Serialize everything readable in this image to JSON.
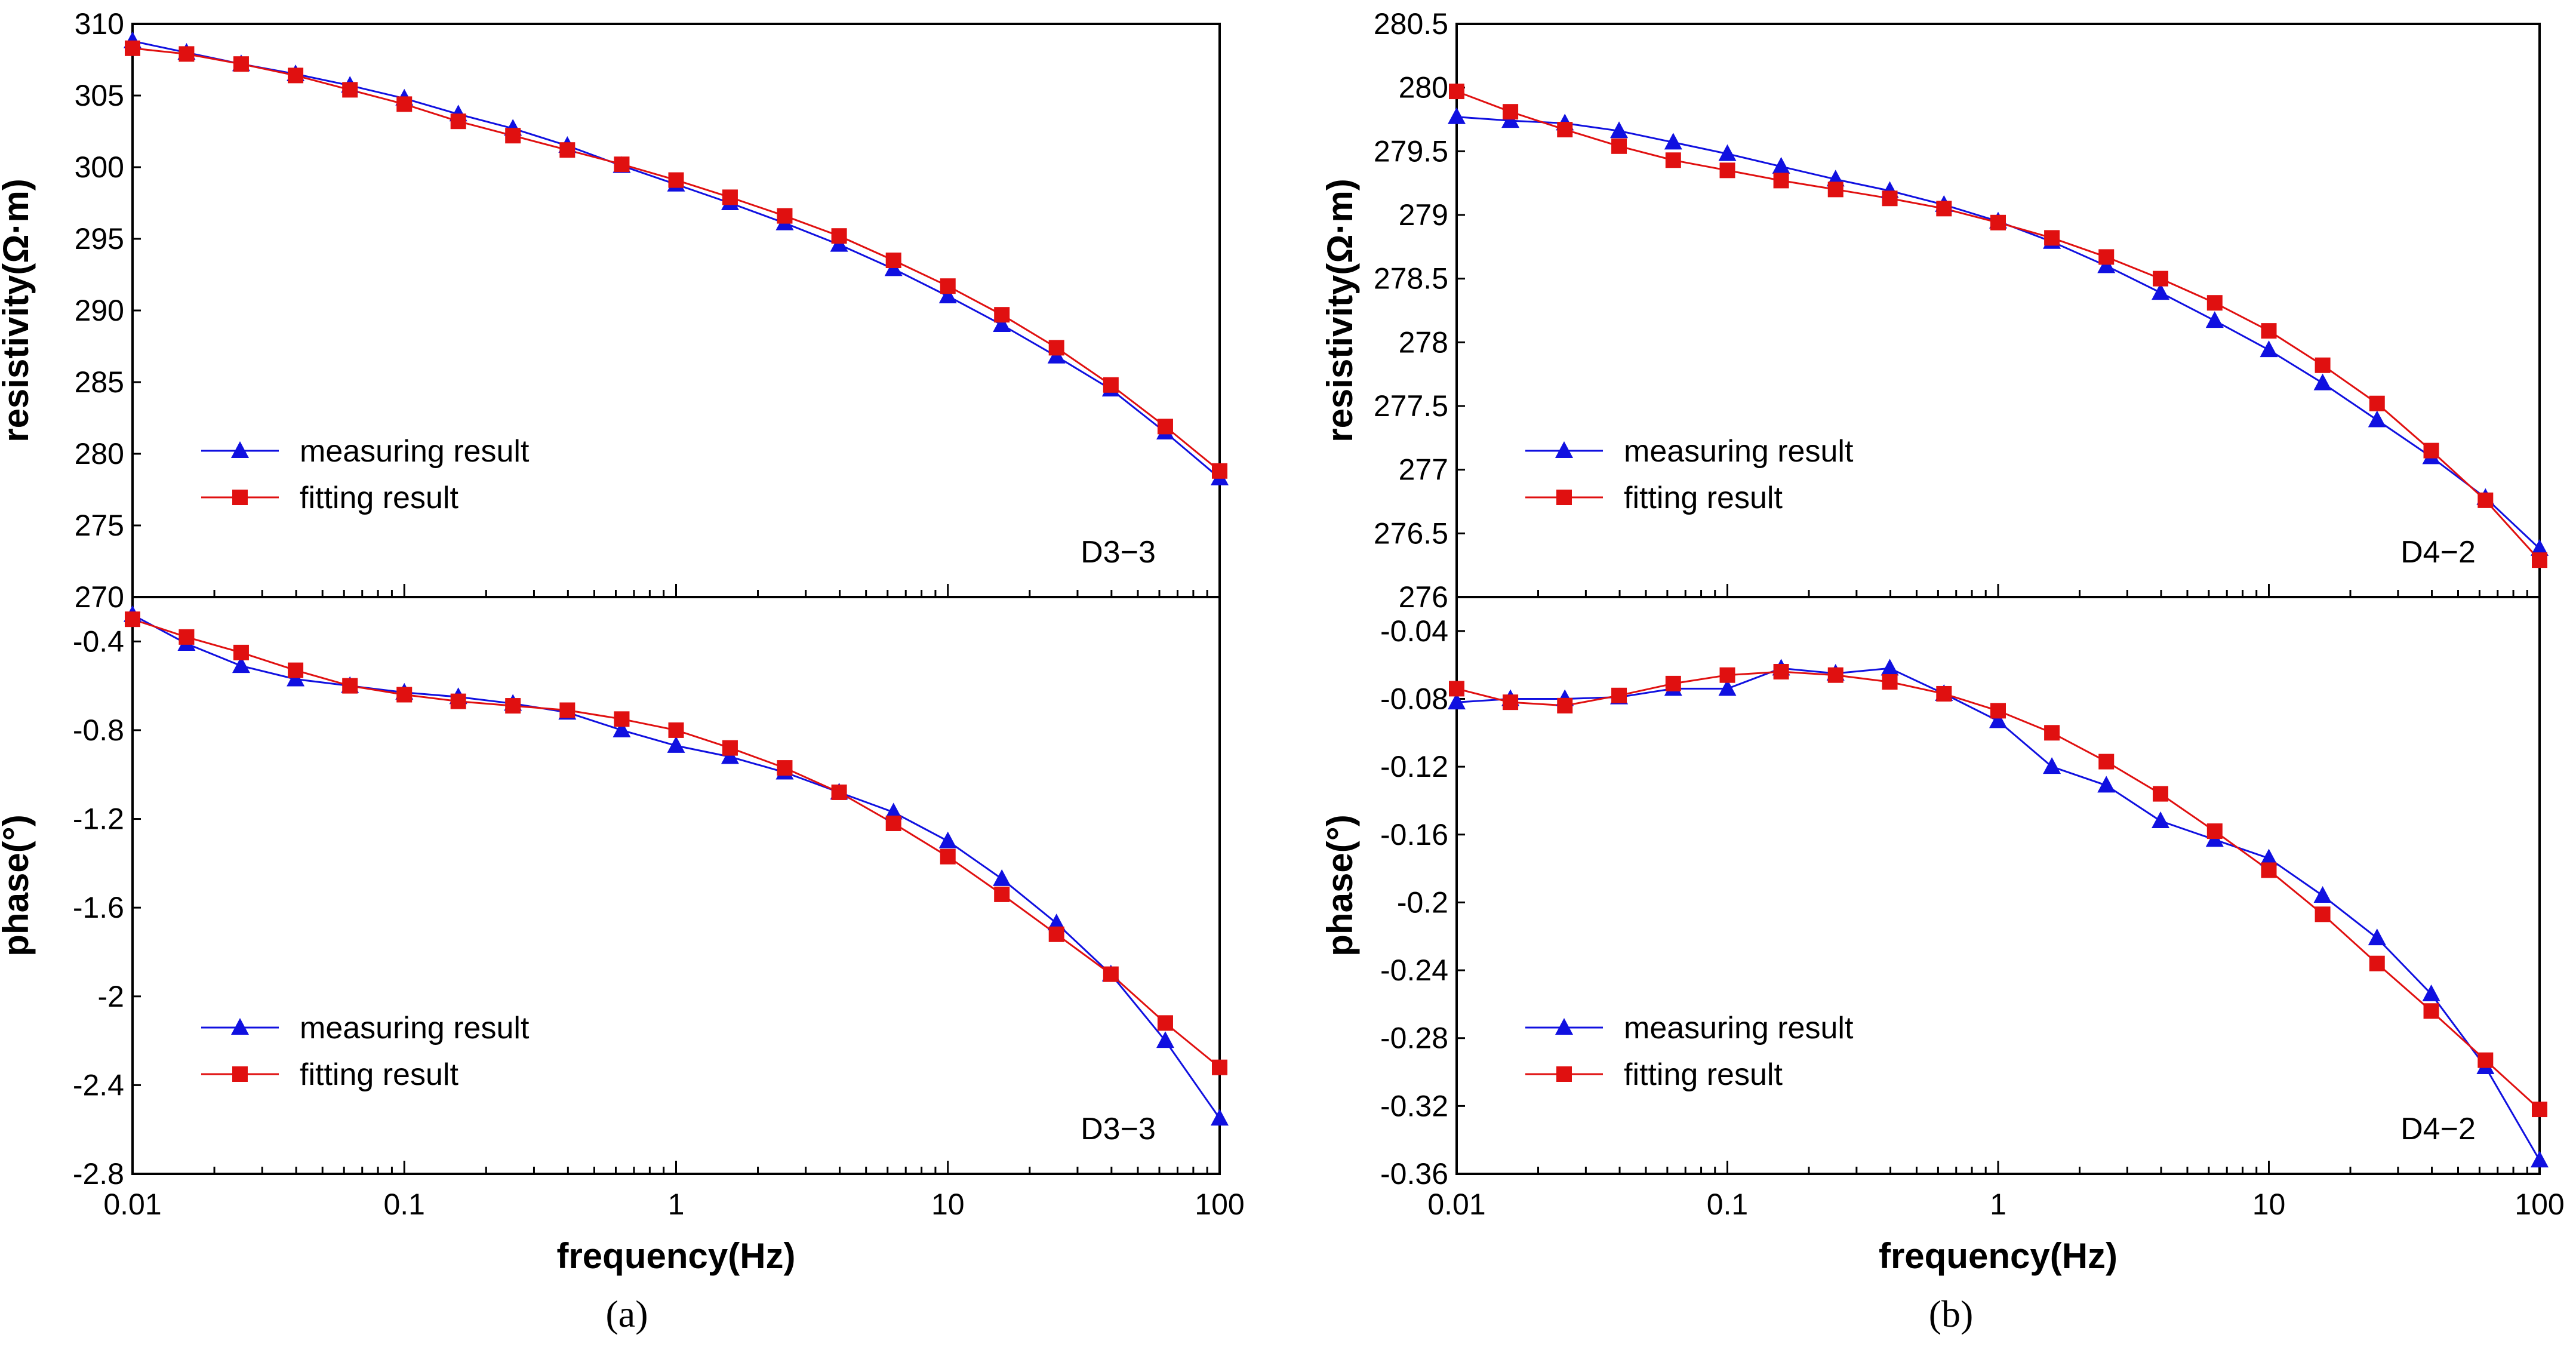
{
  "colors": {
    "measuring": "#1010e0",
    "fitting": "#e01010",
    "axis": "#000000"
  },
  "panels": [
    {
      "letter": "a",
      "label": "(a)"
    },
    {
      "letter": "b",
      "label": "(b)"
    }
  ],
  "chart_data": [
    {
      "type": "line",
      "panel": "a",
      "subplot": "top",
      "ylabel": "resistivity(Ω·m)",
      "xlabel": "",
      "annotation": "D3−3",
      "xscale": "log",
      "xlim": [
        0.01,
        100
      ],
      "ylim": [
        270,
        310
      ],
      "yticks": [
        "310",
        "305",
        "300",
        "295",
        "290",
        "285",
        "280",
        "275",
        "270"
      ],
      "xticks": [],
      "legend_position": "lower-left",
      "x": [
        0.01,
        0.0158,
        0.0251,
        0.0398,
        0.0631,
        0.1,
        0.158,
        0.251,
        0.398,
        0.631,
        1,
        1.58,
        2.51,
        3.98,
        6.31,
        10,
        15.8,
        25.1,
        39.8,
        63.1,
        100
      ],
      "series": [
        {
          "name": "measuring result",
          "marker": "triangle",
          "values": [
            308.8,
            308.0,
            307.2,
            306.5,
            305.7,
            304.8,
            303.7,
            302.7,
            301.5,
            300.1,
            298.8,
            297.5,
            296.1,
            294.6,
            292.9,
            291.0,
            289.0,
            286.8,
            284.5,
            281.5,
            278.3
          ]
        },
        {
          "name": "fitting result",
          "marker": "square",
          "values": [
            308.3,
            307.9,
            307.2,
            306.4,
            305.4,
            304.4,
            303.2,
            302.2,
            301.2,
            300.2,
            299.1,
            297.9,
            296.6,
            295.2,
            293.5,
            291.7,
            289.7,
            287.4,
            284.8,
            281.9,
            278.8
          ]
        }
      ]
    },
    {
      "type": "line",
      "panel": "a",
      "subplot": "bottom",
      "ylabel": "phase(°)",
      "xlabel": "frequency(Hz)",
      "annotation": "D3−3",
      "xscale": "log",
      "xlim": [
        0.01,
        100
      ],
      "ylim": [
        -2.8,
        -0.2
      ],
      "yticks": [
        "-0.4",
        "-0.8",
        "-1.2",
        "-1.6",
        "-2",
        "-2.4",
        "-2.8"
      ],
      "xticks": [
        "0.01",
        "0.1",
        "1",
        "10",
        "100"
      ],
      "legend_position": "lower-left",
      "x": [
        0.01,
        0.0158,
        0.0251,
        0.0398,
        0.0631,
        0.1,
        0.158,
        0.251,
        0.398,
        0.631,
        1,
        1.58,
        2.51,
        3.98,
        6.31,
        10,
        15.8,
        25.1,
        39.8,
        63.1,
        100
      ],
      "series": [
        {
          "name": "measuring result",
          "marker": "triangle",
          "values": [
            -0.28,
            -0.41,
            -0.51,
            -0.57,
            -0.6,
            -0.63,
            -0.65,
            -0.68,
            -0.72,
            -0.8,
            -0.87,
            -0.92,
            -0.99,
            -1.08,
            -1.17,
            -1.3,
            -1.47,
            -1.67,
            -1.9,
            -2.2,
            -2.55
          ]
        },
        {
          "name": "fitting result",
          "marker": "square",
          "values": [
            -0.3,
            -0.38,
            -0.45,
            -0.53,
            -0.6,
            -0.64,
            -0.67,
            -0.69,
            -0.71,
            -0.75,
            -0.8,
            -0.88,
            -0.97,
            -1.08,
            -1.22,
            -1.37,
            -1.54,
            -1.72,
            -1.9,
            -2.12,
            -2.32
          ]
        }
      ]
    },
    {
      "type": "line",
      "panel": "b",
      "subplot": "top",
      "ylabel": "resistivity(Ω·m)",
      "xlabel": "",
      "annotation": "D4−2",
      "xscale": "log",
      "xlim": [
        0.01,
        100
      ],
      "ylim": [
        276,
        280.5
      ],
      "yticks": [
        "280.5",
        "280",
        "279.5",
        "279",
        "278.5",
        "278",
        "277.5",
        "277",
        "276.5",
        "276"
      ],
      "xticks": [],
      "legend_position": "lower-left",
      "x": [
        0.01,
        0.0158,
        0.0251,
        0.0398,
        0.0631,
        0.1,
        0.158,
        0.251,
        0.398,
        0.631,
        1,
        1.58,
        2.51,
        3.98,
        6.31,
        10,
        15.8,
        25.1,
        39.8,
        63.1,
        100
      ],
      "series": [
        {
          "name": "measuring result",
          "marker": "triangle",
          "values": [
            279.77,
            279.74,
            279.72,
            279.66,
            279.57,
            279.48,
            279.38,
            279.28,
            279.19,
            279.08,
            278.95,
            278.79,
            278.6,
            278.39,
            278.17,
            277.94,
            277.68,
            277.39,
            277.1,
            276.78,
            276.38
          ]
        },
        {
          "name": "fitting result",
          "marker": "square",
          "values": [
            279.97,
            279.81,
            279.67,
            279.54,
            279.43,
            279.35,
            279.27,
            279.2,
            279.13,
            279.05,
            278.94,
            278.82,
            278.67,
            278.5,
            278.31,
            278.09,
            277.82,
            277.52,
            277.15,
            276.76,
            276.29
          ]
        }
      ]
    },
    {
      "type": "line",
      "panel": "b",
      "subplot": "bottom",
      "ylabel": "phase(°)",
      "xlabel": "frequency(Hz)",
      "annotation": "D4−2",
      "xscale": "log",
      "xlim": [
        0.01,
        100
      ],
      "ylim": [
        -0.36,
        -0.02
      ],
      "yticks": [
        "-0.04",
        "-0.08",
        "-0.12",
        "-0.16",
        "-0.2",
        "-0.24",
        "-0.28",
        "-0.32",
        "-0.36"
      ],
      "xticks": [
        "0.01",
        "0.1",
        "1",
        "10",
        "100"
      ],
      "legend_position": "lower-left",
      "x": [
        0.01,
        0.0158,
        0.0251,
        0.0398,
        0.0631,
        0.1,
        0.158,
        0.251,
        0.398,
        0.631,
        1,
        1.58,
        2.51,
        3.98,
        6.31,
        10,
        15.8,
        25.1,
        39.8,
        63.1,
        100
      ],
      "series": [
        {
          "name": "measuring result",
          "marker": "triangle",
          "values": [
            -0.082,
            -0.08,
            -0.08,
            -0.079,
            -0.074,
            -0.074,
            -0.062,
            -0.065,
            -0.062,
            -0.077,
            -0.093,
            -0.12,
            -0.131,
            -0.152,
            -0.163,
            -0.174,
            -0.196,
            -0.221,
            -0.254,
            -0.297,
            -0.352
          ]
        },
        {
          "name": "fitting result",
          "marker": "square",
          "values": [
            -0.074,
            -0.082,
            -0.084,
            -0.078,
            -0.071,
            -0.066,
            -0.064,
            -0.066,
            -0.07,
            -0.077,
            -0.087,
            -0.1,
            -0.117,
            -0.136,
            -0.158,
            -0.181,
            -0.207,
            -0.236,
            -0.264,
            -0.293,
            -0.322
          ]
        }
      ]
    }
  ]
}
